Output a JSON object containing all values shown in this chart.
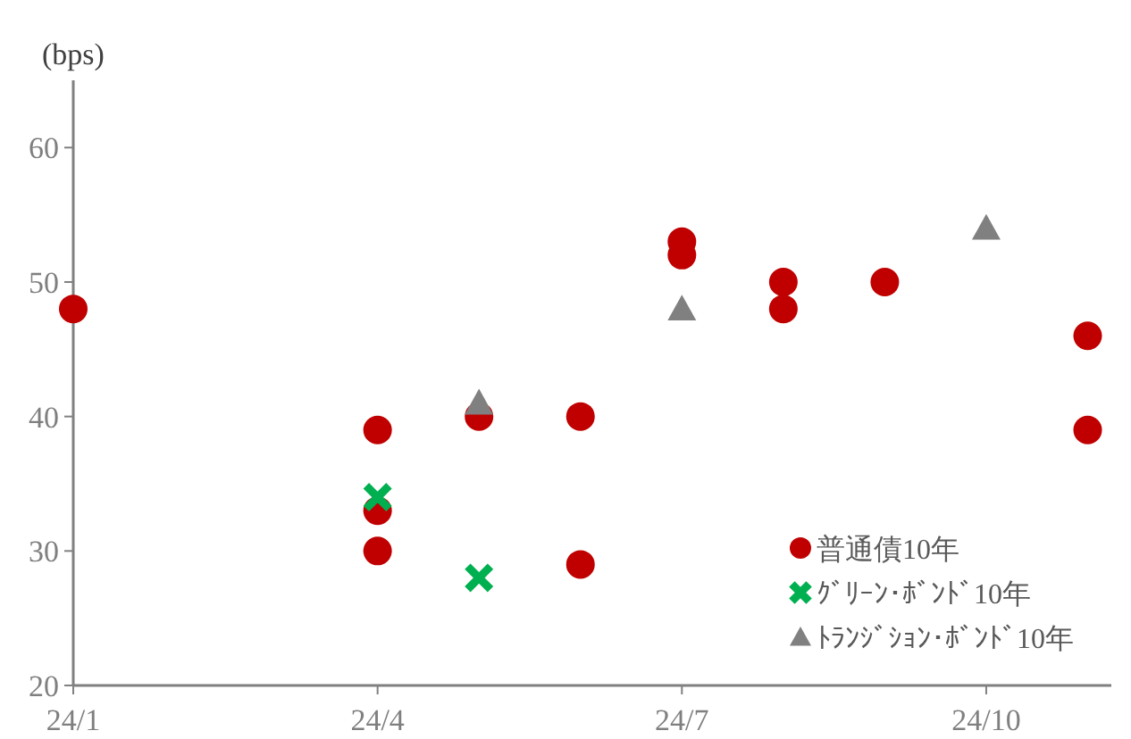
{
  "chart_data": {
    "type": "scatter",
    "ylabel": "(bps)",
    "xlim": [
      "--01-01",
      "--11-08"
    ],
    "ylim": [
      20,
      65
    ],
    "xticks": [
      {
        "value": "--01-01",
        "label": "24/1"
      },
      {
        "value": "--04-01",
        "label": "24/4"
      },
      {
        "value": "--07-01",
        "label": "24/7"
      },
      {
        "value": "--10-01",
        "label": "24/10"
      }
    ],
    "yticks": [
      20,
      30,
      40,
      50,
      60
    ],
    "grid": false,
    "legend": "bottom right",
    "series": [
      {
        "name": "普通債10年",
        "color": "#c00000",
        "marker": "circle",
        "x": [
          "--01-01",
          "--04-01",
          "--04-01",
          "--04-01",
          "--05-01",
          "--06-01",
          "--06-01",
          "--07-01",
          "--07-01",
          "--08-01",
          "--08-01",
          "--09-01",
          "--11-01",
          "--11-01"
        ],
        "values": [
          48,
          39,
          33,
          30,
          40,
          40,
          29,
          53,
          52,
          50,
          48,
          50,
          46,
          39
        ]
      },
      {
        "name": "ｸﾞﾘｰﾝ･ﾎﾞﾝﾄﾞ10年",
        "color": "#00b050",
        "marker": "cross",
        "x": [
          "--04-01",
          "--05-01"
        ],
        "values": [
          34,
          28
        ]
      },
      {
        "name": "ﾄﾗﾝｼﾞｼｮﾝ･ﾎﾞﾝﾄﾞ10年",
        "color": "#808080",
        "marker": "triangle",
        "x": [
          "--05-01",
          "--07-01",
          "--10-01"
        ],
        "values": [
          41,
          48,
          54
        ]
      }
    ]
  }
}
